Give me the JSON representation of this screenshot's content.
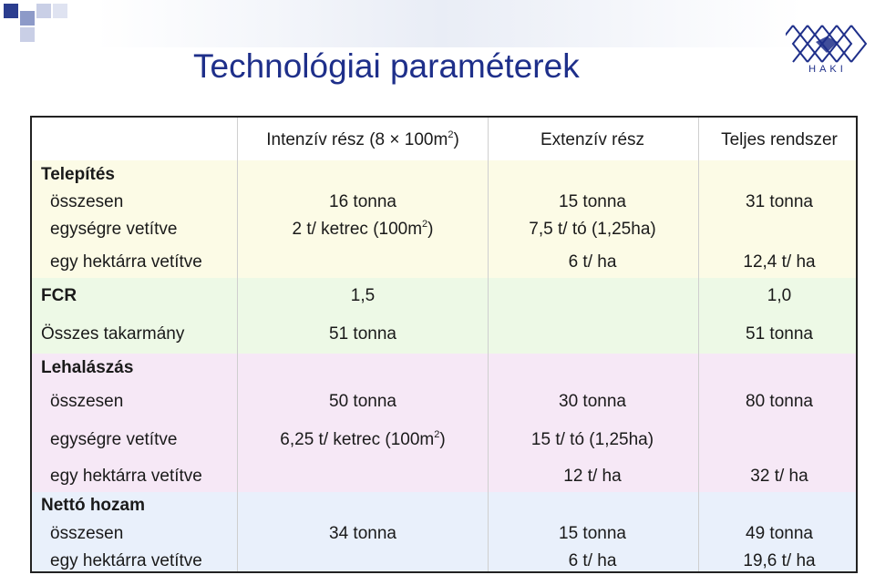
{
  "slide": {
    "title": "Technológiai paraméterek",
    "logo_text": "HAKI"
  },
  "colors": {
    "title": "#1e2f8a",
    "band_yellow": "#fcfbe6",
    "band_green": "#edf9e6",
    "band_pink": "#f6e8f6",
    "band_blue": "#e9f0fb"
  },
  "table": {
    "headers": {
      "intensive_pre": "Intenzív rész (8 ",
      "intensive_times": "×",
      "intensive_mid": " 100m",
      "intensive_sup": "2",
      "intensive_post": ")",
      "extensive": "Extenzív rész",
      "total": "Teljes rendszer"
    },
    "telepites": {
      "heading": "Telepítés",
      "row1_label": "összesen",
      "row1_int": "16 tonna",
      "row1_ext": "15 tonna",
      "row1_tot": "31 tonna",
      "row2_label": "egységre vetítve",
      "row2_int_pre": "2 t/ ketrec (100m",
      "row2_int_sup": "2",
      "row2_int_post": ")",
      "row2_ext": "7,5 t/ tó (1,25ha)",
      "row3_label": "egy hektárra vetítve",
      "row3_ext": "6 t/ ha",
      "row3_tot": "12,4 t/ ha"
    },
    "fcr": {
      "label": "FCR",
      "int": "1,5",
      "tot": "1,0",
      "feed_label": "Összes takarmány",
      "feed_int": "51 tonna",
      "feed_tot": "51 tonna"
    },
    "lehalaszas": {
      "heading": "Lehalászás",
      "row1_label": "összesen",
      "row1_int": "50 tonna",
      "row1_ext": "30 tonna",
      "row1_tot": "80 tonna",
      "row2_label": "egységre vetítve",
      "row2_int_pre": "6,25 t/ ketrec (100m",
      "row2_int_sup": "2",
      "row2_int_post": ")",
      "row2_ext": "15 t/ tó (1,25ha)",
      "row3_label": "egy hektárra vetítve",
      "row3_ext": "12 t/ ha",
      "row3_tot": "32 t/ ha"
    },
    "netto": {
      "heading": "Nettó hozam",
      "row1_label": "összesen",
      "row1_int": "34 tonna",
      "row1_ext": "15 tonna",
      "row1_tot": "49 tonna",
      "row2_label": "egy hektárra vetítve",
      "row2_ext": "6 t/ ha",
      "row2_tot": "19,6 t/ ha"
    }
  }
}
